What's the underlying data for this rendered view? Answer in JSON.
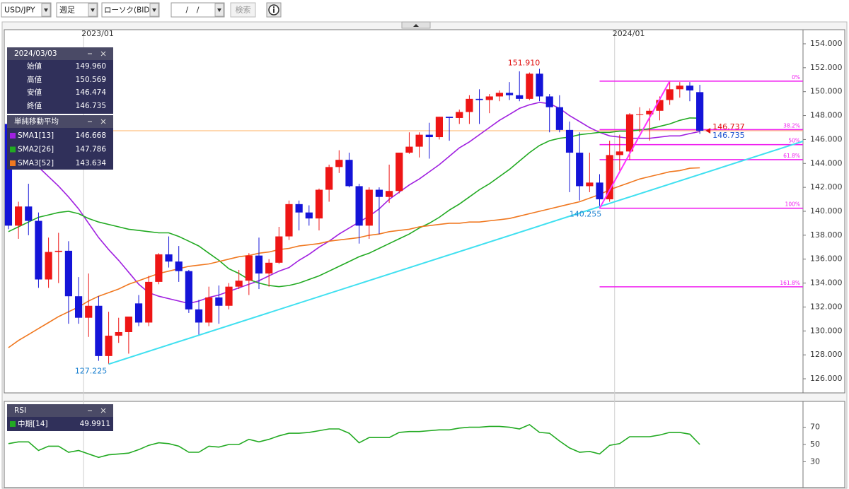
{
  "toolbar": {
    "symbol": "USD/JPY",
    "period": "週足",
    "chart_type": "ローソク(BID)",
    "date": "/ /",
    "search": "検索"
  },
  "chart_data": [
    {
      "type": "candlestick",
      "xlim": [
        -0.42,
        79.3
      ],
      "xticks": [
        {
          "value": 7.5,
          "label": "2023/01"
        },
        {
          "value": 60.5,
          "label": "2024/01"
        }
      ],
      "ylim": [
        124.82,
        155.18
      ],
      "yticks": [
        {
          "value": 126,
          "label": "126.000"
        },
        {
          "value": 128,
          "label": "128.000"
        },
        {
          "value": 130,
          "label": "130.000"
        },
        {
          "value": 132,
          "label": "132.000"
        },
        {
          "value": 134,
          "label": "134.000"
        },
        {
          "value": 136,
          "label": "136.000"
        },
        {
          "value": 138,
          "label": "138.000"
        },
        {
          "value": 140,
          "label": "140.000"
        },
        {
          "value": 142,
          "label": "142.000"
        },
        {
          "value": 144,
          "label": "144.000"
        },
        {
          "value": 146,
          "label": "146.000"
        },
        {
          "value": 148,
          "label": "148.000"
        },
        {
          "value": 150,
          "label": "150.000"
        },
        {
          "value": 152,
          "label": "152.000"
        },
        {
          "value": 154,
          "label": "154.000"
        }
      ],
      "up_color": "#ee1515",
      "down_color": "#1414d8",
      "ohlc": {
        "open": [
          147.3,
          138.8,
          140.4,
          139.2,
          134.3,
          136.6,
          136.7,
          132.9,
          131.1,
          132.1,
          127.9,
          129.6,
          129.9,
          132.3,
          130.7,
          134.1,
          136.4,
          135.8,
          135.0,
          131.8,
          130.7,
          132.8,
          132.1,
          133.7,
          134.2,
          136.3,
          134.8,
          135.7,
          137.9,
          140.6,
          139.9,
          139.4,
          141.8,
          143.7,
          144.3,
          142.1,
          138.8,
          141.8,
          141.2,
          141.7,
          144.9,
          145.4,
          146.4,
          146.2,
          147.9,
          147.8,
          148.3,
          149.4,
          149.3,
          149.6,
          149.9,
          149.7,
          149.4,
          151.5,
          149.6,
          148.7,
          146.8,
          144.9,
          142.1,
          142.4,
          141.0,
          144.7,
          145.0,
          148.1,
          148.1,
          148.4,
          149.3,
          150.2,
          150.5,
          149.96
        ],
        "high": [
          147.6,
          140.8,
          142.3,
          139.9,
          137.8,
          138.2,
          137.5,
          134.5,
          134.8,
          132.9,
          131.6,
          131.1,
          131.2,
          133.0,
          134.6,
          136.5,
          137.9,
          137.1,
          135.1,
          132.6,
          133.7,
          133.8,
          134.0,
          135.1,
          136.5,
          137.8,
          136.0,
          138.7,
          140.9,
          140.9,
          140.5,
          141.9,
          143.9,
          145.1,
          144.9,
          142.3,
          142.0,
          142.0,
          143.9,
          144.9,
          146.6,
          146.6,
          147.4,
          147.9,
          147.9,
          148.5,
          149.7,
          150.2,
          149.8,
          150.1,
          150.8,
          151.7,
          151.6,
          151.91,
          149.8,
          149.7,
          147.5,
          146.6,
          144.9,
          143.1,
          145.9,
          146.4,
          148.2,
          148.7,
          148.6,
          149.6,
          150.882,
          150.8,
          150.8,
          150.569
        ],
        "low": [
          138.5,
          137.7,
          138.0,
          133.6,
          133.6,
          134.0,
          130.6,
          130.6,
          129.5,
          127.5,
          127.225,
          129.0,
          128.1,
          130.4,
          130.4,
          133.9,
          135.3,
          134.1,
          131.5,
          129.6,
          130.4,
          130.6,
          131.8,
          133.5,
          133.0,
          133.5,
          133.7,
          135.6,
          137.6,
          138.4,
          138.8,
          138.4,
          140.8,
          143.2,
          142.0,
          137.3,
          137.7,
          138.1,
          140.7,
          141.5,
          144.8,
          144.5,
          144.4,
          146.0,
          145.9,
          147.3,
          147.3,
          147.3,
          148.2,
          149.2,
          149.3,
          149.2,
          149.3,
          149.2,
          146.6,
          146.6,
          141.6,
          140.9,
          141.6,
          140.255,
          140.8,
          143.4,
          144.3,
          146.6,
          145.9,
          147.6,
          148.9,
          149.5,
          149.2,
          146.474
        ],
        "close": [
          138.8,
          140.4,
          139.2,
          134.3,
          136.6,
          136.7,
          132.9,
          131.1,
          132.1,
          127.9,
          129.6,
          129.9,
          131.2,
          130.7,
          134.1,
          136.4,
          135.8,
          135.0,
          131.8,
          130.7,
          132.8,
          132.1,
          133.7,
          134.2,
          136.3,
          134.8,
          135.7,
          137.9,
          140.6,
          139.9,
          139.4,
          141.8,
          143.7,
          144.3,
          142.1,
          138.8,
          141.8,
          141.2,
          141.7,
          144.9,
          145.4,
          146.4,
          146.2,
          147.9,
          147.8,
          148.3,
          149.4,
          149.3,
          149.6,
          149.9,
          149.7,
          149.4,
          151.5,
          149.6,
          148.7,
          146.8,
          144.9,
          142.1,
          142.4,
          141.0,
          144.7,
          145.0,
          148.1,
          148.1,
          148.4,
          149.3,
          150.2,
          150.5,
          150.1,
          146.735
        ]
      },
      "series": [
        {
          "name": "SMA1[13]",
          "color": "#a020e0",
          "value_label": "146.668",
          "values": [
            145.3,
            144.9,
            144.4,
            143.7,
            142.9,
            142.1,
            141.2,
            140.2,
            139.0,
            137.8,
            136.8,
            135.9,
            134.9,
            133.9,
            133.2,
            132.9,
            132.7,
            132.5,
            132.3,
            132.5,
            132.8,
            133.0,
            133.3,
            133.6,
            133.9,
            134.2,
            134.6,
            135.0,
            135.3,
            135.9,
            136.4,
            137.0,
            137.5,
            138.1,
            138.6,
            139.1,
            139.6,
            140.2,
            141.0,
            141.6,
            142.2,
            142.7,
            143.3,
            143.9,
            144.6,
            145.3,
            145.8,
            146.4,
            147.0,
            147.6,
            148.1,
            148.6,
            148.9,
            149.1,
            149.0,
            148.6,
            148.0,
            147.5,
            147.0,
            146.6,
            146.3,
            146.2,
            146.1,
            146.1,
            146.1,
            146.2,
            146.3,
            146.3,
            146.5,
            146.668
          ]
        },
        {
          "name": "SMA2[26]",
          "color": "#22aa22",
          "value_label": "147.786",
          "values": [
            138.3,
            138.7,
            139.1,
            139.5,
            139.7,
            139.9,
            140.0,
            139.8,
            139.4,
            139.1,
            138.9,
            138.7,
            138.5,
            138.4,
            138.3,
            138.2,
            138.2,
            137.9,
            137.5,
            137.1,
            136.5,
            135.9,
            135.2,
            134.8,
            134.3,
            134.0,
            133.8,
            133.7,
            133.8,
            134.0,
            134.3,
            134.6,
            135.0,
            135.4,
            135.8,
            136.2,
            136.5,
            136.9,
            137.3,
            137.7,
            138.1,
            138.6,
            139.0,
            139.5,
            140.1,
            140.6,
            141.2,
            141.8,
            142.3,
            142.9,
            143.5,
            144.2,
            144.9,
            145.5,
            145.9,
            146.1,
            146.2,
            146.4,
            146.5,
            146.6,
            146.6,
            146.7,
            146.7,
            146.8,
            146.9,
            147.1,
            147.3,
            147.6,
            147.8,
            147.786
          ]
        },
        {
          "name": "SMA3[52]",
          "color": "#f07820",
          "value_label": "143.634",
          "values": [
            128.6,
            129.2,
            129.7,
            130.2,
            130.7,
            131.2,
            131.6,
            132.0,
            132.5,
            132.9,
            133.2,
            133.5,
            133.9,
            134.2,
            134.5,
            134.8,
            135.0,
            135.2,
            135.4,
            135.5,
            135.6,
            135.8,
            136.0,
            136.2,
            136.3,
            136.5,
            136.6,
            136.8,
            136.9,
            137.1,
            137.2,
            137.3,
            137.5,
            137.6,
            137.7,
            137.8,
            138.0,
            138.1,
            138.3,
            138.4,
            138.5,
            138.7,
            138.8,
            138.9,
            139.0,
            139.0,
            139.1,
            139.1,
            139.2,
            139.3,
            139.4,
            139.6,
            139.8,
            140.0,
            140.2,
            140.4,
            140.6,
            140.8,
            141.1,
            141.4,
            141.8,
            142.1,
            142.4,
            142.7,
            142.9,
            143.1,
            143.3,
            143.4,
            143.6,
            143.634
          ]
        }
      ],
      "info": {
        "date": "2024/03/03",
        "rows": [
          {
            "label": "始値",
            "value": "149.960"
          },
          {
            "label": "高値",
            "value": "150.569"
          },
          {
            "label": "安値",
            "value": "146.474"
          },
          {
            "label": "終値",
            "value": "146.735"
          }
        ]
      },
      "sma_title": "単純移動平均",
      "price_line": {
        "value": 146.735,
        "color": "#ffb060"
      },
      "fib_start": 59,
      "fib_color": "#f020f0",
      "fib": [
        {
          "label": "0%",
          "value": 150.882
        },
        {
          "label": "38.2%",
          "value": 146.823
        },
        {
          "label": "50%",
          "value": 145.569
        },
        {
          "label": "61.8%",
          "value": 144.315
        },
        {
          "label": "100%",
          "value": 140.255
        },
        {
          "label": "161.8%",
          "value": 133.688
        }
      ],
      "trendlines": [
        {
          "color": "#40e0f0",
          "x": [
            10,
            79.3
          ],
          "y": [
            127.225,
            145.85
          ]
        },
        {
          "color": "#ff30ff",
          "x": [
            59,
            66
          ],
          "y": [
            140.255,
            150.882
          ]
        }
      ],
      "annotations": [
        {
          "text": "151.910",
          "x": 53,
          "y": 151.91,
          "color": "#e01010"
        },
        {
          "text": "127.225",
          "x": 10,
          "y": 127.225,
          "color": "#1a80d0"
        },
        {
          "text": "140.255",
          "x": 59,
          "y": 140.255,
          "color": "#1a80d0"
        },
        {
          "text": "146.737",
          "x": 69,
          "y": 146.737,
          "color": "#e01010"
        },
        {
          "text": "146.735",
          "x": 69,
          "y": 146.735,
          "color": "#1a50d0"
        }
      ]
    },
    {
      "type": "line",
      "title": "RSI",
      "xlim": [
        -0.42,
        79.3
      ],
      "ylim": [
        0,
        100
      ],
      "yticks": [
        30,
        50,
        70
      ],
      "series": [
        {
          "name": "中期[14]",
          "color": "#22aa22",
          "value_label": "49.9911",
          "values": [
            51,
            53,
            53,
            43,
            48,
            48,
            41,
            43,
            39,
            35,
            38,
            39,
            40,
            44,
            49,
            52,
            51,
            48,
            41,
            41,
            48,
            47,
            50,
            50,
            56,
            53,
            56,
            60,
            63,
            63,
            64,
            66,
            68,
            68,
            63,
            52,
            58,
            58,
            58,
            64,
            65,
            65,
            66,
            67,
            67,
            69,
            70,
            70,
            71,
            71,
            70,
            68,
            73,
            64,
            63,
            54,
            46,
            41,
            42,
            39,
            49,
            51,
            59,
            59,
            59,
            61,
            64,
            64,
            62,
            49.9911
          ]
        }
      ]
    }
  ]
}
